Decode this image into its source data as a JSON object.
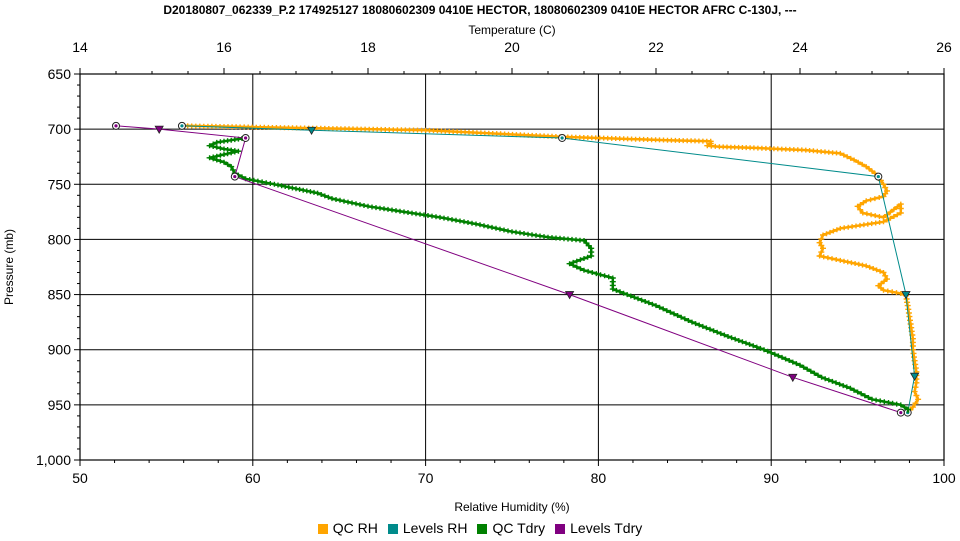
{
  "chart_data": {
    "type": "line",
    "title": "D20180807_062339_P.2 174925127 18080602309 0410E HECTOR, 18080602309 0410E HECTOR AFRC C-130J, ---",
    "x_label": "Relative Humidity (%)",
    "x_range": [
      50,
      100
    ],
    "x_ticks": [
      "50",
      "60",
      "70",
      "80",
      "90",
      "100"
    ],
    "x2_label": "Temperature (C)",
    "x2_range": [
      14,
      26
    ],
    "x2_ticks": [
      "14",
      "16",
      "18",
      "20",
      "22",
      "24",
      "26"
    ],
    "y_label": "Pressure (mb)",
    "y_range": [
      650,
      1000
    ],
    "y_inverted": true,
    "y_ticks": [
      "650",
      "700",
      "750",
      "800",
      "850",
      "900",
      "950",
      "1,000"
    ],
    "grid": true,
    "legend_position": "bottom",
    "colors": {
      "qc_rh": "#ffa500",
      "levels_rh": "#008b8b",
      "qc_tdry": "#008000",
      "levels_tdry": "#800080"
    },
    "series": [
      {
        "key": "qc_rh",
        "name": "QC RH",
        "axis": "rh",
        "style": "line-dense",
        "points": [
          [
            56,
            697
          ],
          [
            70,
            701
          ],
          [
            78,
            707
          ],
          [
            84,
            710
          ],
          [
            86.5,
            711
          ],
          [
            86.5,
            713
          ],
          [
            86.3,
            715
          ],
          [
            87,
            716
          ],
          [
            89,
            717
          ],
          [
            92,
            719
          ],
          [
            94,
            722
          ],
          [
            94.8,
            728
          ],
          [
            95.5,
            734
          ],
          [
            96,
            740
          ],
          [
            96.2,
            743
          ],
          [
            96.5,
            750
          ],
          [
            96.7,
            756
          ],
          [
            96.5,
            761
          ],
          [
            95.5,
            765
          ],
          [
            95,
            770
          ],
          [
            95.3,
            776
          ],
          [
            96.5,
            780
          ],
          [
            97.5,
            768
          ],
          [
            97.5,
            776
          ],
          [
            96.5,
            784
          ],
          [
            94,
            790
          ],
          [
            93,
            796
          ],
          [
            92.8,
            803
          ],
          [
            93,
            808
          ],
          [
            92.8,
            815
          ],
          [
            94,
            819
          ],
          [
            95.5,
            824
          ],
          [
            96.5,
            830
          ],
          [
            96.7,
            836
          ],
          [
            96.2,
            842
          ],
          [
            96.5,
            846
          ],
          [
            97.5,
            849
          ],
          [
            97.8,
            851
          ],
          [
            97.9,
            860
          ],
          [
            98,
            870
          ],
          [
            98.1,
            880
          ],
          [
            98.2,
            890
          ],
          [
            98.2,
            900
          ],
          [
            98.3,
            910
          ],
          [
            98.4,
            920
          ],
          [
            98.4,
            930
          ],
          [
            98.3,
            938
          ],
          [
            98.5,
            945
          ],
          [
            98.2,
            952
          ],
          [
            97.9,
            957
          ]
        ]
      },
      {
        "key": "levels_rh",
        "name": "Levels RH",
        "axis": "rh",
        "style": "line-markers",
        "points": [
          [
            55.9,
            697
          ],
          [
            63.4,
            701
          ],
          [
            77.9,
            708
          ],
          [
            96.2,
            743
          ],
          [
            97.8,
            850
          ],
          [
            98.3,
            924
          ],
          [
            97.9,
            957
          ]
        ]
      },
      {
        "key": "qc_tdry",
        "name": "QC Tdry",
        "axis": "temp",
        "style": "line-dense",
        "points": [
          [
            16.3,
            708
          ],
          [
            16.1,
            710
          ],
          [
            15.9,
            712
          ],
          [
            15.8,
            715
          ],
          [
            16.0,
            718
          ],
          [
            16.2,
            720
          ],
          [
            16.0,
            723
          ],
          [
            15.8,
            726
          ],
          [
            16.0,
            730
          ],
          [
            16.1,
            734
          ],
          [
            16.15,
            740
          ],
          [
            16.3,
            745
          ],
          [
            16.7,
            750
          ],
          [
            17.0,
            754
          ],
          [
            17.3,
            758
          ],
          [
            17.5,
            763
          ],
          [
            18.0,
            770
          ],
          [
            18.5,
            775
          ],
          [
            19.0,
            780
          ],
          [
            19.5,
            786
          ],
          [
            20.0,
            793
          ],
          [
            20.5,
            798
          ],
          [
            21.0,
            801
          ],
          [
            21.1,
            808
          ],
          [
            21.1,
            815
          ],
          [
            20.8,
            822
          ],
          [
            21.0,
            828
          ],
          [
            21.4,
            835
          ],
          [
            21.4,
            845
          ],
          [
            22.0,
            860
          ],
          [
            22.5,
            875
          ],
          [
            23.0,
            888
          ],
          [
            23.5,
            900
          ],
          [
            24.0,
            914
          ],
          [
            24.3,
            925
          ],
          [
            24.7,
            935
          ],
          [
            25.0,
            945
          ],
          [
            25.4,
            950
          ],
          [
            25.5,
            954
          ],
          [
            25.5,
            957
          ]
        ]
      },
      {
        "key": "levels_tdry",
        "name": "Levels Tdry",
        "axis": "temp",
        "style": "line-markers",
        "points": [
          [
            14.5,
            697
          ],
          [
            15.1,
            700
          ],
          [
            16.3,
            708
          ],
          [
            16.15,
            743
          ],
          [
            20.8,
            850
          ],
          [
            23.9,
            925
          ],
          [
            25.4,
            957
          ]
        ]
      }
    ]
  }
}
